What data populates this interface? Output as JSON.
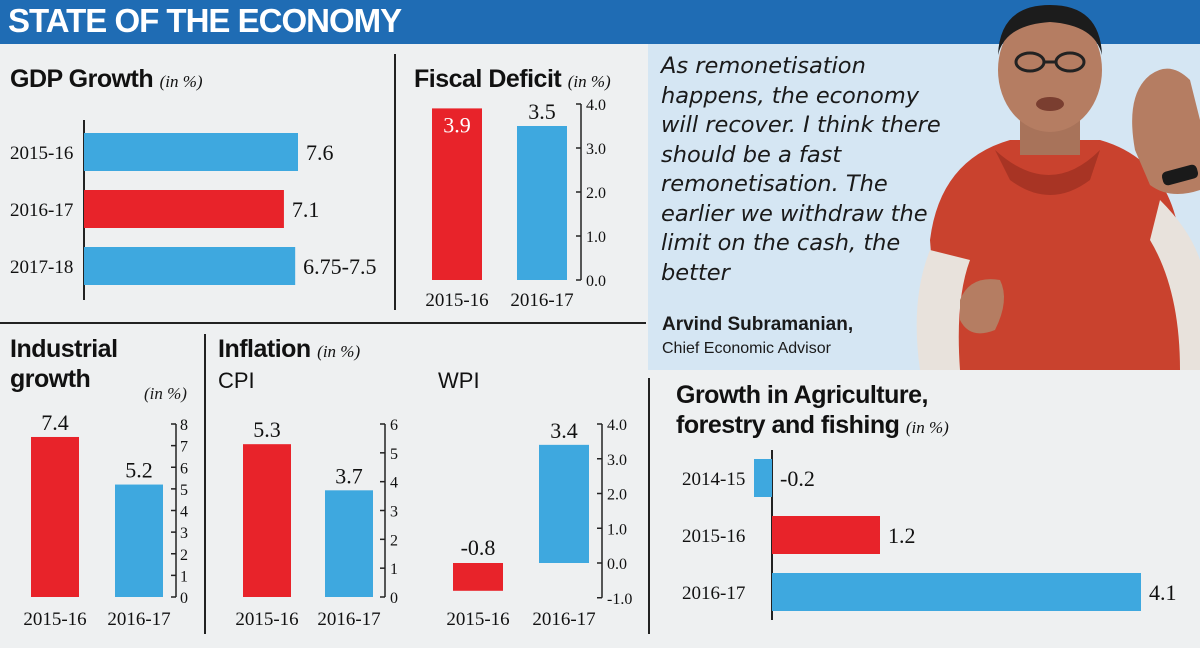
{
  "banner": {
    "title": "STATE OF THE ECONOMY"
  },
  "quote": {
    "text": "As remonetisation happens, the economy will recover. I think there should be a fast remonetisation. The earlier we withdraw the limit on the cash, the better",
    "author": "Arvind Subramanian,",
    "role": "Chief Economic Advisor"
  },
  "colors": {
    "red": "#e8232a",
    "blue": "#3ea8df",
    "banner": "#1f6cb4",
    "quote_bg": "#d5e6f3"
  },
  "chart_data": [
    {
      "id": "gdp",
      "type": "bar",
      "orientation": "horizontal",
      "title": "GDP Growth",
      "unit": "(in %)",
      "categories": [
        "2015-16",
        "2016-17",
        "2017-18"
      ],
      "values": [
        7.6,
        7.1,
        7.5
      ],
      "value_labels": [
        "7.6",
        "7.1",
        "6.75-7.5"
      ],
      "colors": [
        "blue",
        "red",
        "blue"
      ],
      "xlim": [
        0,
        8
      ]
    },
    {
      "id": "fiscal",
      "type": "bar",
      "title": "Fiscal Deficit",
      "unit": "(in %)",
      "categories": [
        "2015-16",
        "2016-17"
      ],
      "values": [
        3.9,
        3.5
      ],
      "value_labels": [
        "3.9",
        "3.5"
      ],
      "colors": [
        "red",
        "blue"
      ],
      "ylim": [
        0,
        4
      ],
      "yticks": [
        "0.0",
        "1.0",
        "2.0",
        "3.0",
        "4.0"
      ]
    },
    {
      "id": "industrial",
      "type": "bar",
      "title": "Industrial growth",
      "title_lines": [
        "Industrial",
        "growth"
      ],
      "unit": "(in %)",
      "categories": [
        "2015-16",
        "2016-17"
      ],
      "values": [
        7.4,
        5.2
      ],
      "value_labels": [
        "7.4",
        "5.2"
      ],
      "colors": [
        "red",
        "blue"
      ],
      "ylim": [
        0,
        8
      ],
      "yticks": [
        "0",
        "1",
        "2",
        "3",
        "4",
        "5",
        "6",
        "7",
        "8"
      ]
    },
    {
      "id": "cpi",
      "type": "bar",
      "title": "Inflation",
      "unit": "(in %)",
      "subtitle": "CPI",
      "categories": [
        "2015-16",
        "2016-17"
      ],
      "values": [
        5.3,
        3.7
      ],
      "value_labels": [
        "5.3",
        "3.7"
      ],
      "colors": [
        "red",
        "blue"
      ],
      "ylim": [
        0,
        6
      ],
      "yticks": [
        "0",
        "1",
        "2",
        "3",
        "4",
        "5",
        "6"
      ]
    },
    {
      "id": "wpi",
      "type": "bar",
      "subtitle": "WPI",
      "categories": [
        "2015-16",
        "2016-17"
      ],
      "values": [
        -0.8,
        3.4
      ],
      "value_labels": [
        "-0.8",
        "3.4"
      ],
      "colors": [
        "red",
        "blue"
      ],
      "ylim": [
        -1,
        4
      ],
      "yticks": [
        "-1.0",
        "0.0",
        "1.0",
        "2.0",
        "3.0",
        "4.0"
      ]
    },
    {
      "id": "agri",
      "type": "bar",
      "orientation": "horizontal",
      "title": "Growth in Agriculture, forestry and fishing",
      "title_lines": [
        "Growth in Agriculture,",
        "forestry and fishing"
      ],
      "unit": "(in %)",
      "categories": [
        "2014-15",
        "2015-16",
        "2016-17"
      ],
      "values": [
        -0.2,
        1.2,
        4.1
      ],
      "value_labels": [
        "-0.2",
        "1.2",
        "4.1"
      ],
      "colors": [
        "blue",
        "red",
        "blue"
      ],
      "xlim": [
        -0.2,
        4.1
      ]
    }
  ]
}
